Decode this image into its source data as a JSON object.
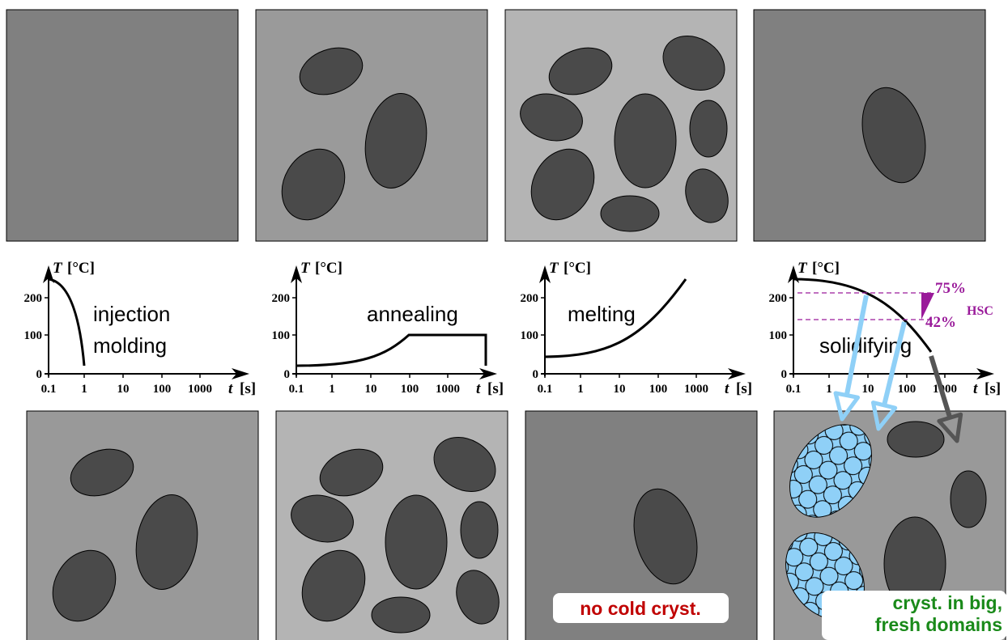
{
  "axis": {
    "y_label": "T",
    "y_unit": "[°C]",
    "yticks": [
      "200",
      "100",
      "0"
    ],
    "xticks": [
      "0.1",
      "1",
      "10",
      "100",
      "1000"
    ],
    "x_label": "t",
    "x_unit": "[s]"
  },
  "charts": [
    {
      "labels": [
        "injection",
        "molding"
      ]
    },
    {
      "labels": [
        "annealing"
      ]
    },
    {
      "labels": [
        "melting"
      ]
    },
    {
      "labels": [
        "solidifying"
      ],
      "levels": [
        "75%",
        "42%"
      ],
      "levels_tag": "HSC"
    }
  ],
  "notes": {
    "melting": "no cold cryst.",
    "solidifying": [
      "cryst. in big,",
      "fresh domains"
    ]
  }
}
